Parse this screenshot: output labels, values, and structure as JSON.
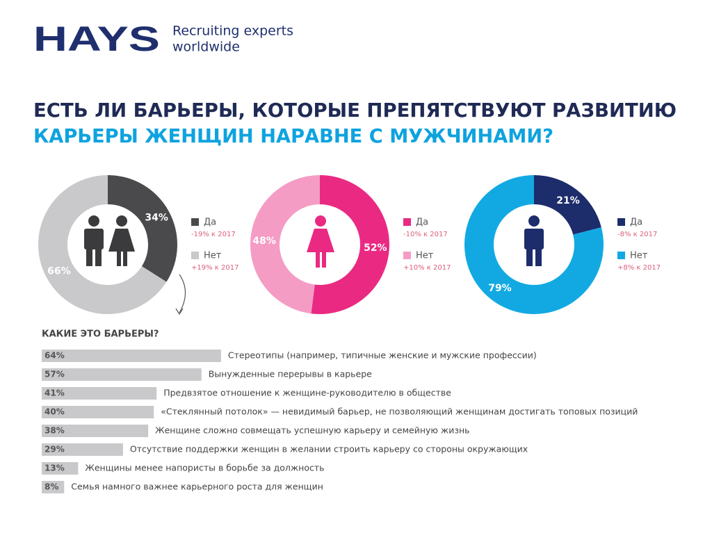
{
  "logo": {
    "name": "HAYS",
    "tagline": [
      "Recruiting experts",
      "worldwide"
    ]
  },
  "title": {
    "line1": "ЕСТЬ ЛИ БАРЬЕРЫ, КОТОРЫЕ ПРЕПЯТСТВУЮТ РАЗВИТИЮ",
    "line2": "КАРЬЕРЫ ЖЕНЩИН НАРАВНЕ С МУЖЧИНАМИ?"
  },
  "chart_data": [
    {
      "type": "pie",
      "categories": [
        "Да",
        "Нет"
      ],
      "values": [
        34,
        66
      ],
      "value_labels": [
        "34%",
        "66%"
      ],
      "colors": [
        "#4a4a4c",
        "#c9c9cb"
      ],
      "notes": [
        "-19% к 2017",
        "+19% к 2017"
      ]
    },
    {
      "type": "pie",
      "categories": [
        "Да",
        "Нет"
      ],
      "values": [
        52,
        48
      ],
      "value_labels": [
        "52%",
        "48%"
      ],
      "colors": [
        "#ea2a82",
        "#f49cc4"
      ],
      "notes": [
        "-10% к 2017",
        "+10% к 2017"
      ]
    },
    {
      "type": "pie",
      "categories": [
        "Да",
        "Нет"
      ],
      "values": [
        21,
        79
      ],
      "value_labels": [
        "21%",
        "79%"
      ],
      "colors": [
        "#1d2c6b",
        "#12a9e3"
      ],
      "notes": [
        "-8% к 2017",
        "+8% к 2017"
      ]
    },
    {
      "type": "bar",
      "orientation": "horizontal",
      "title": "КАКИЕ ЭТО БАРЬЕРЫ?",
      "color": "#c9c9cc",
      "categories": [
        "Стереотипы (например, типичные женские и мужские профессии)",
        "Вынужденные перерывы в карьере",
        "Предвзятое отношение к женщине-руководителю в обществе",
        "«Стеклянный потолок» — невидимый барьер, не позволяющий женщинам достигать топовых позиций",
        "Женщине сложно совмещать успешную карьеру и семейную жизнь",
        "Отсутствие поддержки женщин в желании строить карьеру со стороны окружающих",
        "Женщины менее напористы в борьбе за должность",
        "Семья намного важнее карьерного роста для женщин"
      ],
      "values": [
        64,
        57,
        41,
        40,
        38,
        29,
        13,
        8
      ],
      "value_labels": [
        "64%",
        "57%",
        "41%",
        "40%",
        "38%",
        "29%",
        "13%",
        "8%"
      ]
    }
  ]
}
